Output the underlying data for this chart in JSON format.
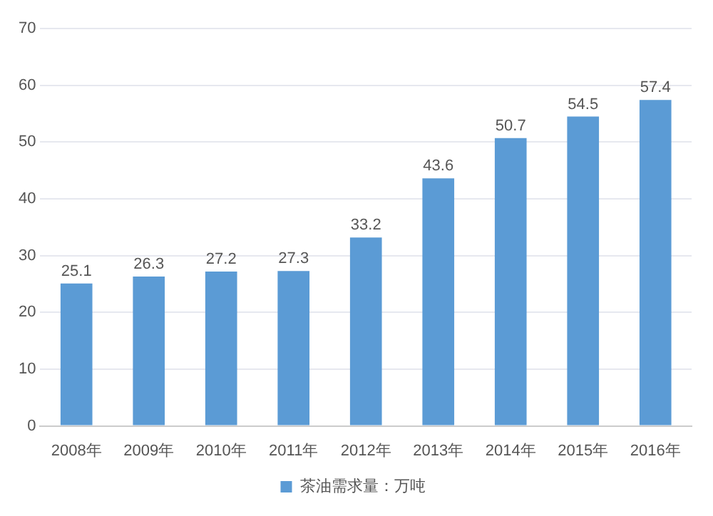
{
  "chart_data": {
    "type": "bar",
    "categories": [
      "2008年",
      "2009年",
      "2010年",
      "2011年",
      "2012年",
      "2013年",
      "2014年",
      "2015年",
      "2016年"
    ],
    "series": [
      {
        "name": "茶油需求量：万吨",
        "color": "#5b9bd5",
        "values": [
          25.1,
          26.3,
          27.2,
          27.3,
          33.2,
          43.6,
          50.7,
          54.5,
          57.4
        ]
      }
    ],
    "ylim": [
      0,
      70
    ],
    "yticks": [
      0,
      10,
      20,
      30,
      40,
      50,
      60,
      70
    ],
    "grid": "y",
    "legend": "bottom",
    "data_labels": true
  }
}
